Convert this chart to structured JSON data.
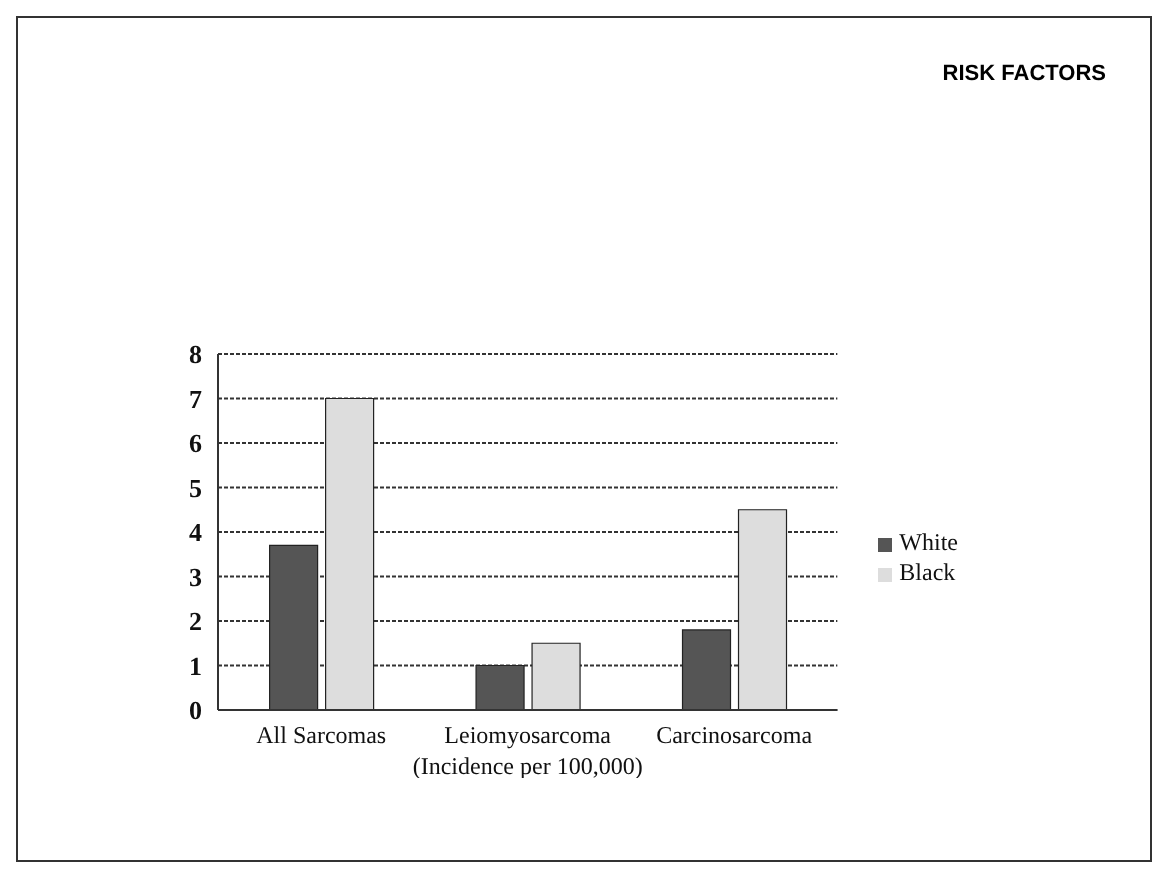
{
  "chart_data": {
    "type": "bar",
    "title": "RISK FACTORS",
    "xlabel": "(Incidence per 100,000)",
    "categories": [
      "All Sarcomas",
      "Leiomyosarcoma",
      "Carcinosarcoma"
    ],
    "series": [
      {
        "name": "White",
        "color": "#555555",
        "values": [
          3.7,
          1.0,
          1.8
        ]
      },
      {
        "name": "Black",
        "color": "#dddddd",
        "values": [
          7.0,
          1.5,
          4.5
        ]
      }
    ],
    "ylim": [
      0,
      8
    ],
    "yticks": [
      0,
      1,
      2,
      3,
      4,
      5,
      6,
      7,
      8
    ],
    "grid": "y",
    "legend": "right"
  }
}
